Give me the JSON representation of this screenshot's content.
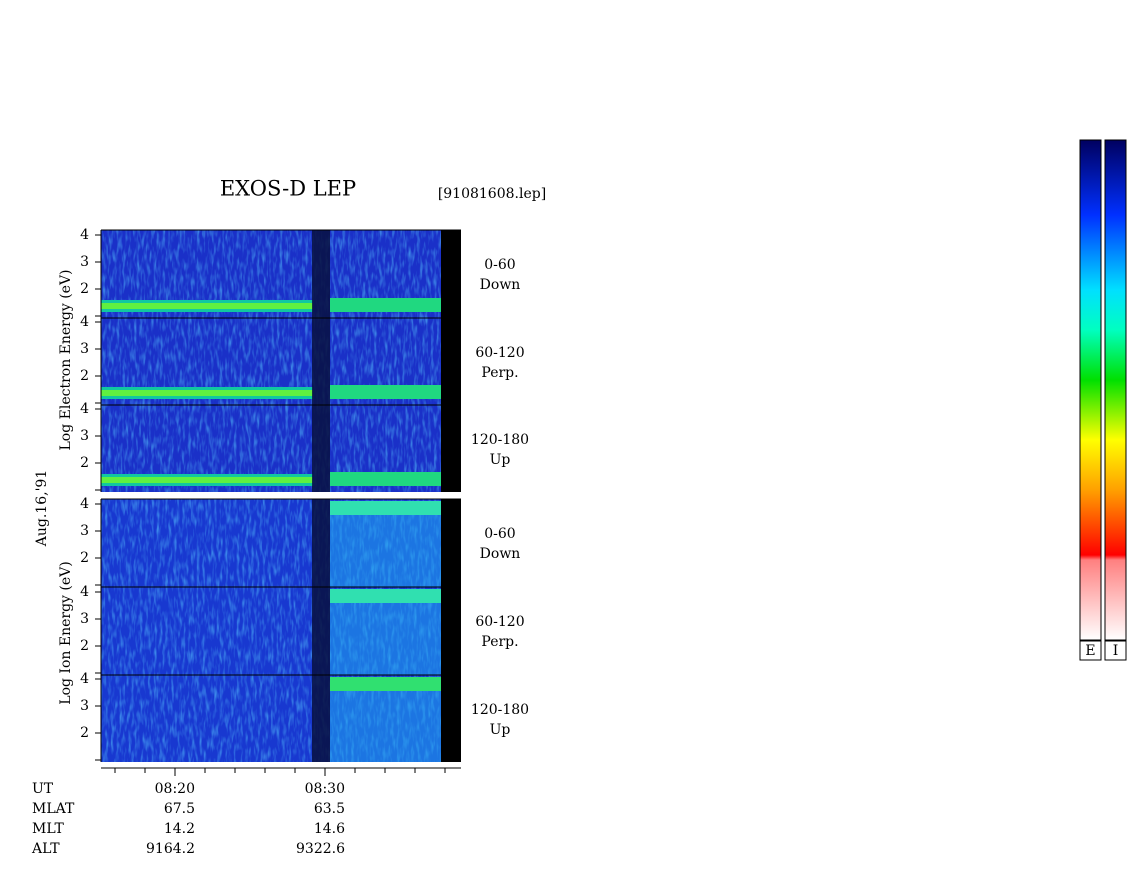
{
  "header": {
    "title": "EXOS-D LEP",
    "file": "[91081608.lep]"
  },
  "y_labels": {
    "date": "Aug.16,'91",
    "electron": "Log Electron Energy (eV)",
    "ion": "Log Ion Energy (eV)"
  },
  "panels": [
    {
      "label_1": "0-60",
      "label_2": "Down",
      "yticks": [
        "2",
        "3",
        "4"
      ]
    },
    {
      "label_1": "60-120",
      "label_2": "Perp.",
      "yticks": [
        "2",
        "3",
        "4"
      ]
    },
    {
      "label_1": "120-180",
      "label_2": "Up",
      "yticks": [
        "2",
        "3",
        "4"
      ]
    },
    {
      "label_1": "0-60",
      "label_2": "Down",
      "yticks": [
        "2",
        "3",
        "4"
      ]
    },
    {
      "label_1": "60-120",
      "label_2": "Perp.",
      "yticks": [
        "2",
        "3",
        "4"
      ]
    },
    {
      "label_1": "120-180",
      "label_2": "Up",
      "yticks": [
        "2",
        "3",
        "4"
      ]
    }
  ],
  "footer": {
    "rows": [
      [
        "UT",
        "08:20",
        "08:30"
      ],
      [
        "MLAT",
        "67.5",
        "63.5"
      ],
      [
        "MLT",
        "14.2",
        "14.6"
      ],
      [
        "ALT",
        "9164.2",
        "9322.6"
      ]
    ]
  },
  "colorbars": [
    "E",
    "I"
  ]
}
